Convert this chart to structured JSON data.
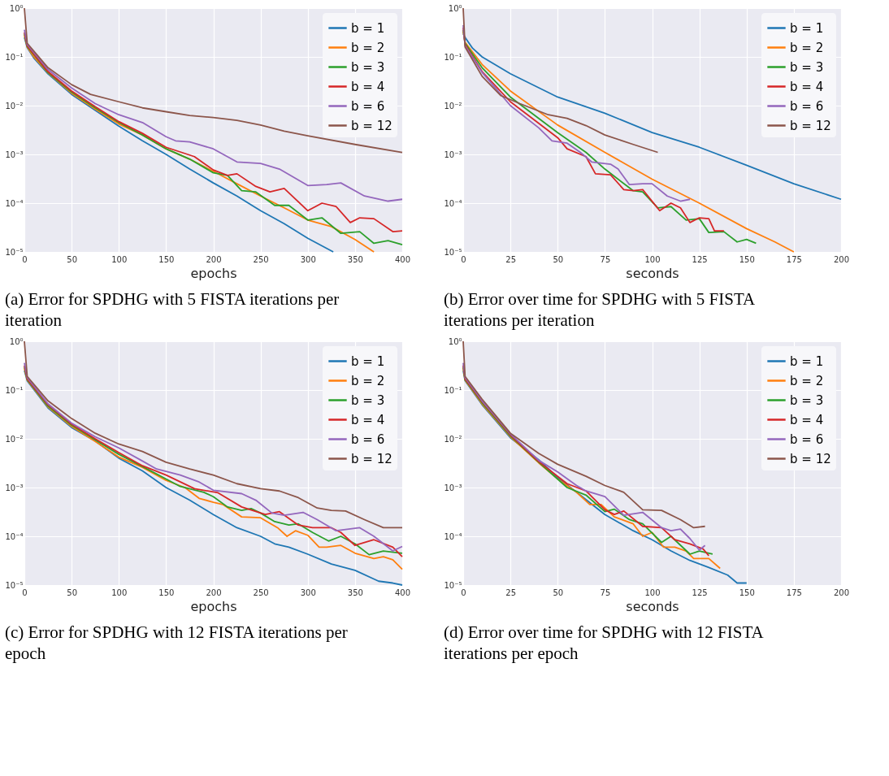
{
  "chart_data": [
    {
      "type": "line",
      "title": "(a) Error for SPDHG with 5 FISTA iterations per iteration",
      "xlabel": "epochs",
      "log": "y",
      "grid": true,
      "legend": "top right",
      "line_style": "solid",
      "marker": "none",
      "xlim": [
        0,
        400
      ],
      "xticks": [
        0,
        50,
        100,
        150,
        200,
        250,
        300,
        350,
        400
      ],
      "ylim": [
        1e-05,
        1
      ],
      "yticks": [
        {
          "value": 1e-05,
          "label": "10⁻⁵"
        },
        {
          "value": 0.0001,
          "label": "10⁻⁴"
        },
        {
          "value": 0.001,
          "label": "10⁻³"
        },
        {
          "value": 0.01,
          "label": "10⁻²"
        },
        {
          "value": 0.1,
          "label": "10⁻¹"
        },
        {
          "value": 1,
          "label": "10⁰"
        }
      ],
      "series": [
        {
          "name": "b = 1",
          "color": "#1f77b4",
          "x": [
            0,
            3,
            10,
            25,
            50,
            75,
            100,
            125,
            150,
            175,
            200,
            225,
            250,
            275,
            300,
            327
          ],
          "values": [
            0.25,
            0.155,
            0.095,
            0.045,
            0.017,
            0.008,
            0.0038,
            0.0019,
            0.001,
            0.0005,
            0.00026,
            0.00014,
            7e-05,
            3.8e-05,
            1.9e-05,
            1e-05
          ]
        },
        {
          "name": "b = 2",
          "color": "#ff7f0e",
          "x": [
            0,
            3,
            10,
            25,
            50,
            75,
            100,
            125,
            150,
            175,
            200,
            225,
            250,
            275,
            300,
            325,
            350,
            370
          ],
          "values": [
            0.28,
            0.16,
            0.1,
            0.047,
            0.018,
            0.0085,
            0.0042,
            0.0025,
            0.0013,
            0.0008,
            0.00045,
            0.00025,
            0.00014,
            8e-05,
            4.5e-05,
            3.3e-05,
            1.8e-05,
            1e-05
          ]
        },
        {
          "name": "b = 3",
          "color": "#2ca02c",
          "x": [
            0,
            3,
            25,
            50,
            75,
            100,
            125,
            150,
            175,
            200,
            215,
            230,
            245,
            265,
            280,
            300,
            315,
            335,
            355,
            370,
            385,
            400
          ],
          "values": [
            0.3,
            0.165,
            0.048,
            0.019,
            0.009,
            0.0045,
            0.0025,
            0.0013,
            0.0008,
            0.00042,
            0.00037,
            0.00018,
            0.00017,
            9e-05,
            9e-05,
            4.5e-05,
            5e-05,
            2.4e-05,
            2.6e-05,
            1.5e-05,
            1.7e-05,
            1.4e-05
          ]
        },
        {
          "name": "b = 4",
          "color": "#d62728",
          "x": [
            0,
            3,
            25,
            50,
            75,
            100,
            125,
            150,
            180,
            200,
            215,
            225,
            245,
            260,
            275,
            300,
            315,
            330,
            345,
            355,
            370,
            390,
            400
          ],
          "values": [
            0.32,
            0.17,
            0.05,
            0.02,
            0.0095,
            0.0047,
            0.0027,
            0.0014,
            0.0009,
            0.00048,
            0.00037,
            0.0004,
            0.00022,
            0.00017,
            0.0002,
            7e-05,
            0.0001,
            8.5e-05,
            4e-05,
            5e-05,
            4.8e-05,
            2.6e-05,
            2.7e-05
          ]
        },
        {
          "name": "b = 6",
          "color": "#9467bd",
          "x": [
            0,
            3,
            25,
            50,
            75,
            100,
            125,
            150,
            160,
            175,
            200,
            225,
            250,
            270,
            300,
            320,
            335,
            360,
            385,
            400
          ],
          "values": [
            0.36,
            0.18,
            0.055,
            0.023,
            0.011,
            0.0065,
            0.0045,
            0.0023,
            0.0019,
            0.0018,
            0.0013,
            0.0007,
            0.00065,
            0.0005,
            0.00023,
            0.00024,
            0.00026,
            0.00014,
            0.00011,
            0.00012
          ]
        },
        {
          "name": "b = 12",
          "color": "#8c564b",
          "x": [
            0,
            3,
            25,
            50,
            70,
            100,
            125,
            150,
            175,
            200,
            225,
            250,
            275,
            300,
            350,
            400
          ],
          "values": [
            1,
            0.19,
            0.06,
            0.027,
            0.017,
            0.012,
            0.009,
            0.0075,
            0.0063,
            0.0057,
            0.005,
            0.004,
            0.003,
            0.0024,
            0.0016,
            0.0011
          ]
        }
      ]
    },
    {
      "type": "line",
      "title": "(b) Error over time for SPDHG with 5 FISTA iterations per iteration",
      "xlabel": "seconds",
      "log": "y",
      "grid": true,
      "legend": "top right",
      "line_style": "solid",
      "marker": "none",
      "xlim": [
        0,
        200
      ],
      "xticks": [
        0,
        25,
        50,
        75,
        100,
        125,
        150,
        175,
        200
      ],
      "ylim": [
        1e-05,
        1
      ],
      "yticks": [
        {
          "value": 1e-05,
          "label": "10⁻⁵"
        },
        {
          "value": 0.0001,
          "label": "10⁻⁴"
        },
        {
          "value": 0.001,
          "label": "10⁻³"
        },
        {
          "value": 0.01,
          "label": "10⁻²"
        },
        {
          "value": 0.1,
          "label": "10⁻¹"
        },
        {
          "value": 1,
          "label": "10⁰"
        }
      ],
      "series": [
        {
          "name": "b = 1",
          "color": "#1f77b4",
          "x": [
            0,
            1,
            5,
            10,
            25,
            50,
            75,
            100,
            125,
            150,
            175,
            200
          ],
          "values": [
            0.3,
            0.25,
            0.15,
            0.1,
            0.045,
            0.015,
            0.007,
            0.0028,
            0.0014,
            0.0006,
            0.00025,
            0.00012
          ]
        },
        {
          "name": "b = 2",
          "color": "#ff7f0e",
          "x": [
            0,
            1,
            10,
            25,
            50,
            75,
            100,
            125,
            150,
            165,
            175
          ],
          "values": [
            0.33,
            0.2,
            0.07,
            0.02,
            0.004,
            0.0011,
            0.00031,
            0.0001,
            3e-05,
            1.6e-05,
            1e-05
          ]
        },
        {
          "name": "b = 3",
          "color": "#2ca02c",
          "x": [
            0,
            1,
            10,
            25,
            50,
            65,
            75,
            90,
            95,
            103,
            110,
            118,
            125,
            130,
            138,
            145,
            150,
            155
          ],
          "values": [
            0.36,
            0.19,
            0.06,
            0.015,
            0.0028,
            0.0011,
            0.0005,
            0.00018,
            0.00017,
            8e-05,
            8.5e-05,
            4.5e-05,
            4.8e-05,
            2.5e-05,
            2.6e-05,
            1.6e-05,
            1.8e-05,
            1.5e-05
          ]
        },
        {
          "name": "b = 4",
          "color": "#d62728",
          "x": [
            0,
            1,
            10,
            25,
            50,
            55,
            65,
            70,
            78,
            85,
            90,
            95,
            104,
            110,
            115,
            120,
            125,
            130,
            133,
            138
          ],
          "values": [
            0.4,
            0.18,
            0.05,
            0.012,
            0.0022,
            0.0013,
            0.0009,
            0.0004,
            0.00038,
            0.00019,
            0.00018,
            0.00019,
            7e-05,
            0.0001,
            8e-05,
            4e-05,
            5e-05,
            4.8e-05,
            2.7e-05,
            2.7e-05
          ]
        },
        {
          "name": "b = 6",
          "color": "#9467bd",
          "x": [
            0,
            1,
            10,
            25,
            40,
            47,
            55,
            62,
            68,
            78,
            82,
            88,
            95,
            100,
            108,
            115,
            120
          ],
          "values": [
            0.45,
            0.17,
            0.048,
            0.01,
            0.0035,
            0.0019,
            0.0017,
            0.0011,
            0.0007,
            0.00063,
            0.0005,
            0.00024,
            0.00025,
            0.00025,
            0.00014,
            0.00011,
            0.00012
          ]
        },
        {
          "name": "b = 12",
          "color": "#8c564b",
          "x": [
            0,
            1,
            10,
            20,
            30,
            45,
            55,
            65,
            75,
            90,
            103
          ],
          "values": [
            1,
            0.16,
            0.04,
            0.016,
            0.011,
            0.0065,
            0.0055,
            0.0039,
            0.0025,
            0.0016,
            0.0011
          ]
        }
      ]
    },
    {
      "type": "line",
      "title": "(c) Error for SPDHG with 12 FISTA iterations per epoch",
      "xlabel": "epochs",
      "log": "y",
      "grid": true,
      "legend": "top right",
      "line_style": "solid",
      "marker": "none",
      "xlim": [
        0,
        400
      ],
      "xticks": [
        0,
        50,
        100,
        150,
        200,
        250,
        300,
        350,
        400
      ],
      "ylim": [
        1e-05,
        1
      ],
      "yticks": [
        {
          "value": 1e-05,
          "label": "10⁻⁵"
        },
        {
          "value": 0.0001,
          "label": "10⁻⁴"
        },
        {
          "value": 0.001,
          "label": "10⁻³"
        },
        {
          "value": 0.01,
          "label": "10⁻²"
        },
        {
          "value": 0.1,
          "label": "10⁻¹"
        },
        {
          "value": 1,
          "label": "10⁰"
        }
      ],
      "series": [
        {
          "name": "b = 1",
          "color": "#1f77b4",
          "x": [
            0,
            3,
            25,
            50,
            75,
            100,
            125,
            150,
            175,
            200,
            225,
            250,
            265,
            280,
            300,
            325,
            350,
            375,
            390,
            400
          ],
          "values": [
            0.25,
            0.155,
            0.043,
            0.017,
            0.009,
            0.004,
            0.0022,
            0.001,
            0.00055,
            0.00028,
            0.00015,
            0.0001,
            7e-05,
            6e-05,
            4.3e-05,
            2.7e-05,
            2e-05,
            1.2e-05,
            1.1e-05,
            1e-05
          ]
        },
        {
          "name": "b = 2",
          "color": "#ff7f0e",
          "x": [
            0,
            3,
            25,
            50,
            75,
            100,
            125,
            150,
            170,
            185,
            200,
            210,
            230,
            250,
            268,
            278,
            287,
            300,
            312,
            320,
            335,
            350,
            370,
            380,
            390,
            400
          ],
          "values": [
            0.28,
            0.16,
            0.045,
            0.018,
            0.0088,
            0.0042,
            0.0026,
            0.0014,
            0.001,
            0.0006,
            0.0005,
            0.00045,
            0.00025,
            0.00024,
            0.00015,
            0.0001,
            0.00013,
            0.000105,
            6e-05,
            6e-05,
            6.5e-05,
            4.5e-05,
            3.5e-05,
            3.8e-05,
            3.3e-05,
            2.1e-05
          ]
        },
        {
          "name": "b = 3",
          "color": "#2ca02c",
          "x": [
            0,
            3,
            25,
            50,
            75,
            100,
            125,
            150,
            165,
            190,
            200,
            215,
            230,
            240,
            250,
            265,
            280,
            290,
            305,
            322,
            335,
            350,
            365,
            380,
            400
          ],
          "values": [
            0.3,
            0.165,
            0.047,
            0.019,
            0.0095,
            0.0048,
            0.0027,
            0.0015,
            0.00105,
            0.0008,
            0.00065,
            0.0004,
            0.00034,
            0.00037,
            0.0003,
            0.0002,
            0.00017,
            0.00018,
            0.00012,
            8e-05,
            0.0001,
            7e-05,
            4.2e-05,
            5e-05,
            4.5e-05
          ]
        },
        {
          "name": "b = 4",
          "color": "#d62728",
          "x": [
            0,
            3,
            25,
            50,
            75,
            100,
            125,
            150,
            180,
            205,
            230,
            255,
            270,
            290,
            305,
            325,
            335,
            350,
            370,
            390,
            400
          ],
          "values": [
            0.32,
            0.17,
            0.05,
            0.02,
            0.01,
            0.0052,
            0.0028,
            0.0018,
            0.00095,
            0.00078,
            0.0004,
            0.00028,
            0.00032,
            0.00017,
            0.00015,
            0.00015,
            0.00012,
            6.5e-05,
            8.5e-05,
            6e-05,
            3.8e-05
          ]
        },
        {
          "name": "b = 6",
          "color": "#9467bd",
          "x": [
            0,
            3,
            25,
            50,
            75,
            100,
            125,
            140,
            165,
            185,
            200,
            230,
            245,
            262,
            275,
            295,
            310,
            330,
            355,
            370,
            390,
            400
          ],
          "values": [
            0.36,
            0.18,
            0.052,
            0.021,
            0.011,
            0.0065,
            0.0035,
            0.0024,
            0.0018,
            0.0013,
            0.00088,
            0.00075,
            0.00055,
            0.0003,
            0.00027,
            0.00031,
            0.00022,
            0.00013,
            0.00015,
            0.0001,
            5e-05,
            6.2e-05
          ]
        },
        {
          "name": "b = 12",
          "color": "#8c564b",
          "x": [
            0,
            3,
            25,
            50,
            75,
            100,
            125,
            150,
            175,
            200,
            225,
            250,
            270,
            290,
            310,
            325,
            340,
            360,
            380,
            400
          ],
          "values": [
            1,
            0.19,
            0.06,
            0.026,
            0.013,
            0.0078,
            0.0055,
            0.0033,
            0.0024,
            0.0018,
            0.0012,
            0.00095,
            0.00085,
            0.00062,
            0.00038,
            0.00034,
            0.00033,
            0.00022,
            0.00015,
            0.00015
          ]
        }
      ]
    },
    {
      "type": "line",
      "title": "(d) Error over time for SPDHG with 12 FISTA iterations per epoch",
      "xlabel": "seconds",
      "log": "y",
      "grid": true,
      "legend": "top right",
      "line_style": "solid",
      "marker": "none",
      "xlim": [
        0,
        200
      ],
      "xticks": [
        0,
        25,
        50,
        75,
        100,
        125,
        150,
        175,
        200
      ],
      "ylim": [
        1e-05,
        1
      ],
      "yticks": [
        {
          "value": 1e-05,
          "label": "10⁻⁵"
        },
        {
          "value": 0.0001,
          "label": "10⁻⁴"
        },
        {
          "value": 0.001,
          "label": "10⁻³"
        },
        {
          "value": 0.01,
          "label": "10⁻²"
        },
        {
          "value": 0.1,
          "label": "10⁻¹"
        },
        {
          "value": 1,
          "label": "10⁰"
        }
      ],
      "series": [
        {
          "name": "b = 1",
          "color": "#1f77b4",
          "x": [
            0,
            1,
            10,
            25,
            40,
            50,
            60,
            75,
            90,
            100,
            110,
            120,
            130,
            140,
            145,
            150
          ],
          "values": [
            0.25,
            0.155,
            0.05,
            0.0105,
            0.0037,
            0.0016,
            0.0008,
            0.00028,
            0.00013,
            8.5e-05,
            5e-05,
            3.2e-05,
            2.3e-05,
            1.6e-05,
            1.1e-05,
            1.1e-05
          ]
        },
        {
          "name": "b = 2",
          "color": "#ff7f0e",
          "x": [
            0,
            1,
            10,
            25,
            40,
            50,
            60,
            67,
            73,
            80,
            90,
            95,
            100,
            106,
            112,
            118,
            122,
            130,
            136
          ],
          "values": [
            0.28,
            0.16,
            0.052,
            0.011,
            0.0032,
            0.0015,
            0.0008,
            0.00045,
            0.00045,
            0.00025,
            0.00018,
            0.0001,
            0.00012,
            6e-05,
            6e-05,
            5e-05,
            3.5e-05,
            3.5e-05,
            2.2e-05
          ]
        },
        {
          "name": "b = 3",
          "color": "#2ca02c",
          "x": [
            0,
            1,
            10,
            25,
            40,
            55,
            65,
            75,
            80,
            88,
            95,
            105,
            110,
            120,
            125,
            132
          ],
          "values": [
            0.3,
            0.165,
            0.055,
            0.0115,
            0.0033,
            0.001,
            0.0007,
            0.00032,
            0.00036,
            0.00022,
            0.00018,
            7.5e-05,
            0.0001,
            4.3e-05,
            5e-05,
            4.3e-05
          ]
        },
        {
          "name": "b = 4",
          "color": "#d62728",
          "x": [
            0,
            1,
            10,
            25,
            40,
            55,
            65,
            75,
            80,
            85,
            95,
            105,
            112,
            120,
            127,
            130
          ],
          "values": [
            0.32,
            0.17,
            0.058,
            0.012,
            0.0034,
            0.0012,
            0.00085,
            0.00035,
            0.00028,
            0.00033,
            0.00016,
            0.00015,
            8.5e-05,
            7e-05,
            5.5e-05,
            4e-05
          ]
        },
        {
          "name": "b = 6",
          "color": "#9467bd",
          "x": [
            0,
            1,
            10,
            25,
            40,
            50,
            60,
            65,
            75,
            85,
            95,
            105,
            110,
            115,
            120,
            125,
            128
          ],
          "values": [
            0.36,
            0.18,
            0.06,
            0.0125,
            0.0036,
            0.0021,
            0.0011,
            0.00085,
            0.00065,
            0.00027,
            0.00031,
            0.00015,
            0.00013,
            0.00014,
            9e-05,
            5.2e-05,
            6.5e-05
          ]
        },
        {
          "name": "b = 12",
          "color": "#8c564b",
          "x": [
            0,
            1,
            10,
            25,
            40,
            50,
            65,
            75,
            85,
            95,
            105,
            115,
            122,
            128
          ],
          "values": [
            1,
            0.19,
            0.065,
            0.013,
            0.005,
            0.003,
            0.0017,
            0.0011,
            0.0008,
            0.00035,
            0.00034,
            0.00022,
            0.00015,
            0.00016
          ]
        }
      ]
    }
  ]
}
